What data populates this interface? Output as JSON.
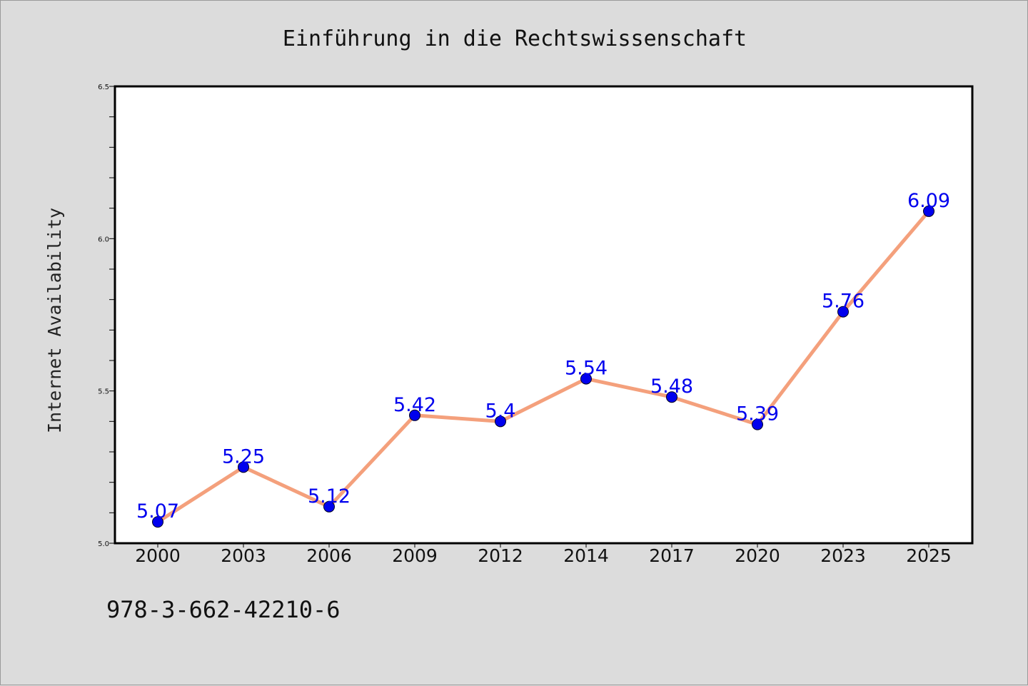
{
  "chart_data": {
    "type": "line",
    "title": "Einführung in die Rechtswissenschaft",
    "xlabel": "",
    "ylabel": "Internet Availability",
    "categories": [
      "2000",
      "2003",
      "2006",
      "2009",
      "2012",
      "2014",
      "2017",
      "2020",
      "2023",
      "2025"
    ],
    "series": [
      {
        "values": [
          5.07,
          5.25,
          5.12,
          5.42,
          5.4,
          5.54,
          5.48,
          5.39,
          5.76,
          6.09
        ],
        "data_labels": [
          "5.07",
          "5.25",
          "5.12",
          "5.42",
          "5.4",
          "5.54",
          "5.48",
          "5.39",
          "5.76",
          "6.09"
        ],
        "line_color": "#f4a07c",
        "marker_color": "#0000ee",
        "label_color": "#0000ee"
      }
    ],
    "ylim": [
      5.0,
      6.5
    ],
    "y_ticks": [
      "5.0",
      "5.5",
      "6.0",
      "6.5"
    ],
    "y_tick_values": [
      5.0,
      5.5,
      6.0,
      6.5
    ],
    "y_minor_step": 0.1,
    "grid": false,
    "legend": "none"
  },
  "annotation": {
    "isbn": "978-3-662-42210-6"
  },
  "colors": {
    "background": "#dcdcdc",
    "plot_background": "#ffffff",
    "axes": "#000000"
  }
}
